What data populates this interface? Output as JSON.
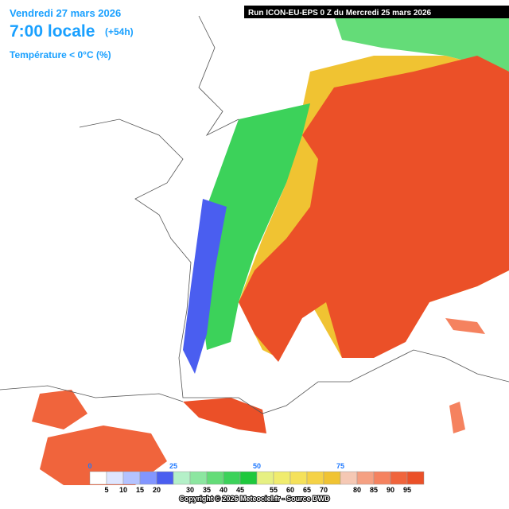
{
  "header": {
    "date": "Vendredi 27 mars 2026",
    "time": "7:00 locale",
    "lead": "(+54h)",
    "parameter": "Température < 0°C (%)",
    "run": "Run ICON-EU-EPS 0 Z du Mercredi 25 mars 2026"
  },
  "legend": {
    "colors": [
      "#ffffff",
      "#dfe6ff",
      "#b4c3ff",
      "#8296ff",
      "#4a5ef0",
      "#b4f0c8",
      "#8ce6a0",
      "#64dc78",
      "#3cd25a",
      "#1ec83c",
      "#e6f082",
      "#f0ec6e",
      "#f5e15a",
      "#f5d246",
      "#f0c332",
      "#f5c8b4",
      "#f5a082",
      "#f5825f",
      "#f0643c",
      "#eb5028"
    ],
    "major_labels": [
      0,
      25,
      50,
      75
    ],
    "minor_labels": [
      5,
      10,
      15,
      20,
      30,
      35,
      40,
      45,
      55,
      60,
      65,
      70,
      80,
      85,
      90,
      95
    ]
  },
  "footer": {
    "copyright": "Copyright © 2026 Meteociel.fr - Source DWD"
  }
}
